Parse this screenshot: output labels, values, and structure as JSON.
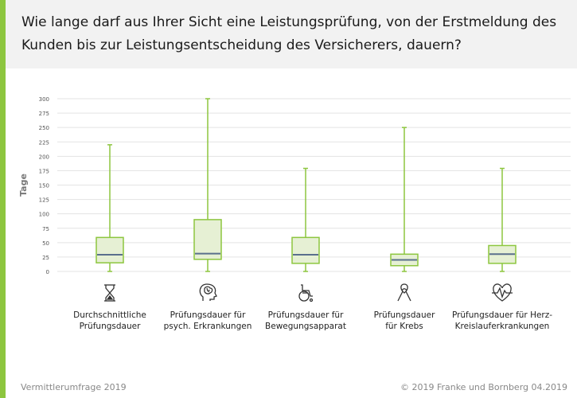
{
  "header": {
    "title": "Wie lange darf aus Ihrer Sicht eine Leistungsprüfung, von der Erstmeldung des Kunden bis zur Leistungsentscheidung des Versicherers, dauern?"
  },
  "footer": {
    "source": "Vermittlerumfrage 2019",
    "copyright": "© 2019 Franke und Bornberg 04.2019"
  },
  "colors": {
    "accent": "#8dc63f",
    "box_fill": "#e6f0d4",
    "median": "#5a6f8c",
    "grid": "#e3e3e3",
    "header_bg": "#f2f2f2"
  },
  "chart_data": {
    "type": "boxplot",
    "ylabel": "Tage",
    "ylim": [
      0,
      300
    ],
    "yticks": [
      0,
      25,
      50,
      75,
      100,
      125,
      150,
      175,
      200,
      225,
      250,
      275,
      300
    ],
    "categories": [
      {
        "label": [
          "Durchschnittliche",
          "Prüfungsdauer"
        ],
        "icon": "hourglass-icon",
        "min": 0,
        "q1": 15,
        "median": 29,
        "q3": 59,
        "max": 220
      },
      {
        "label": [
          "Prüfungsdauer für",
          "psych. Erkrankungen"
        ],
        "icon": "brain-head-icon",
        "min": 0,
        "q1": 21,
        "median": 31,
        "q3": 90,
        "max": 300
      },
      {
        "label": [
          "Prüfungsdauer für",
          "Bewegungsapparat"
        ],
        "icon": "wheelchair-icon",
        "min": 0,
        "q1": 14,
        "median": 29,
        "q3": 59,
        "max": 179
      },
      {
        "label": [
          "Prüfungsdauer",
          "für Krebs"
        ],
        "icon": "ribbon-icon",
        "min": 0,
        "q1": 10,
        "median": 20,
        "q3": 30,
        "max": 250
      },
      {
        "label": [
          "Prüfungsdauer für Herz-",
          "Kreislauferkrankungen"
        ],
        "icon": "heart-pulse-icon",
        "min": 0,
        "q1": 14,
        "median": 30,
        "q3": 45,
        "max": 179
      }
    ]
  }
}
